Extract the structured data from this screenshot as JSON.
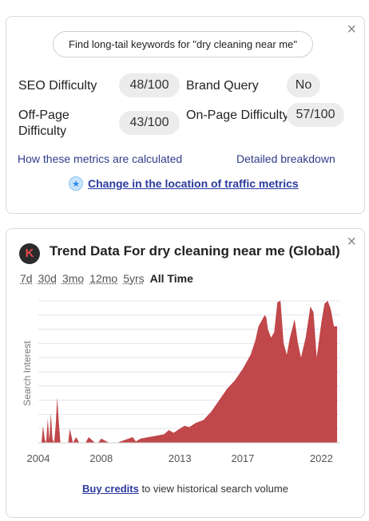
{
  "metrics_card": {
    "close_glyph": "×",
    "longtail_button": "Find long-tail keywords for \"dry cleaning near me\"",
    "seo_difficulty_label": "SEO Difficulty",
    "seo_difficulty_value": "48/100",
    "brand_query_label": "Brand Query",
    "brand_query_value": "No",
    "offpage_label_line1": "Off-Page",
    "offpage_label_line2": "Difficulty",
    "offpage_value": "43/100",
    "onpage_label": "On-Page Difficulty",
    "onpage_value": "57/100",
    "how_calculated_link": "How these metrics are calculated",
    "breakdown_link": "Detailed breakdown",
    "location_link": "Change in the location of traffic metrics",
    "location_icon": "star-badge-icon"
  },
  "trend_card": {
    "close_glyph": "×",
    "logo_letter": "K",
    "title": "Trend Data For dry cleaning near me (Global)",
    "ranges": [
      "7d",
      "30d",
      "3mo",
      "12mo",
      "5yrs",
      "All Time"
    ],
    "active_range": "All Time",
    "footer_link": "Buy credits",
    "footer_text": " to view historical search volume"
  },
  "chart_data": {
    "type": "area",
    "ylabel": "Search Interest",
    "xlabel": "",
    "x_tick_labels": [
      "2004",
      "2008",
      "2013",
      "2017",
      "2022"
    ],
    "x_ticks": [
      2004,
      2008,
      2013,
      2017,
      2022
    ],
    "xlim": [
      2004,
      2023.2
    ],
    "ylim": [
      0,
      100
    ],
    "grid": true,
    "series_color": "#c0474a",
    "x": [
      2004.2,
      2004.3,
      2004.4,
      2004.5,
      2004.6,
      2004.7,
      2004.8,
      2004.9,
      2005.0,
      2005.1,
      2005.2,
      2005.3,
      2005.4,
      2005.5,
      2005.6,
      2005.7,
      2005.8,
      2005.9,
      2006.0,
      2006.2,
      2006.4,
      2006.6,
      2006.8,
      2007.0,
      2007.2,
      2007.4,
      2007.6,
      2007.8,
      2008.0,
      2008.5,
      2009.0,
      2009.5,
      2010.0,
      2010.2,
      2010.5,
      2011.0,
      2011.5,
      2012.0,
      2012.3,
      2012.6,
      2013.0,
      2013.3,
      2013.6,
      2014.0,
      2014.5,
      2015.0,
      2015.5,
      2016.0,
      2016.5,
      2017.0,
      2017.5,
      2017.8,
      2018.0,
      2018.2,
      2018.4,
      2018.5,
      2018.6,
      2018.8,
      2019.0,
      2019.2,
      2019.4,
      2019.6,
      2019.8,
      2020.0,
      2020.3,
      2020.5,
      2020.7,
      2021.0,
      2021.3,
      2021.5,
      2021.7,
      2022.0,
      2022.2,
      2022.4,
      2022.6,
      2022.8,
      2023.0
    ],
    "values": [
      0,
      12,
      3,
      0,
      17,
      2,
      21,
      3,
      0,
      12,
      32,
      15,
      0,
      0,
      0,
      0,
      0,
      0,
      10,
      0,
      4,
      0,
      0,
      0,
      4,
      2,
      0,
      0,
      3,
      0,
      0,
      2,
      4,
      1,
      3,
      4,
      5,
      6,
      9,
      7,
      10,
      12,
      11,
      14,
      16,
      22,
      30,
      38,
      44,
      52,
      62,
      72,
      82,
      86,
      90,
      88,
      80,
      74,
      78,
      99,
      100,
      70,
      62,
      74,
      87,
      71,
      60,
      74,
      96,
      92,
      60,
      85,
      98,
      100,
      94,
      82,
      82
    ]
  }
}
